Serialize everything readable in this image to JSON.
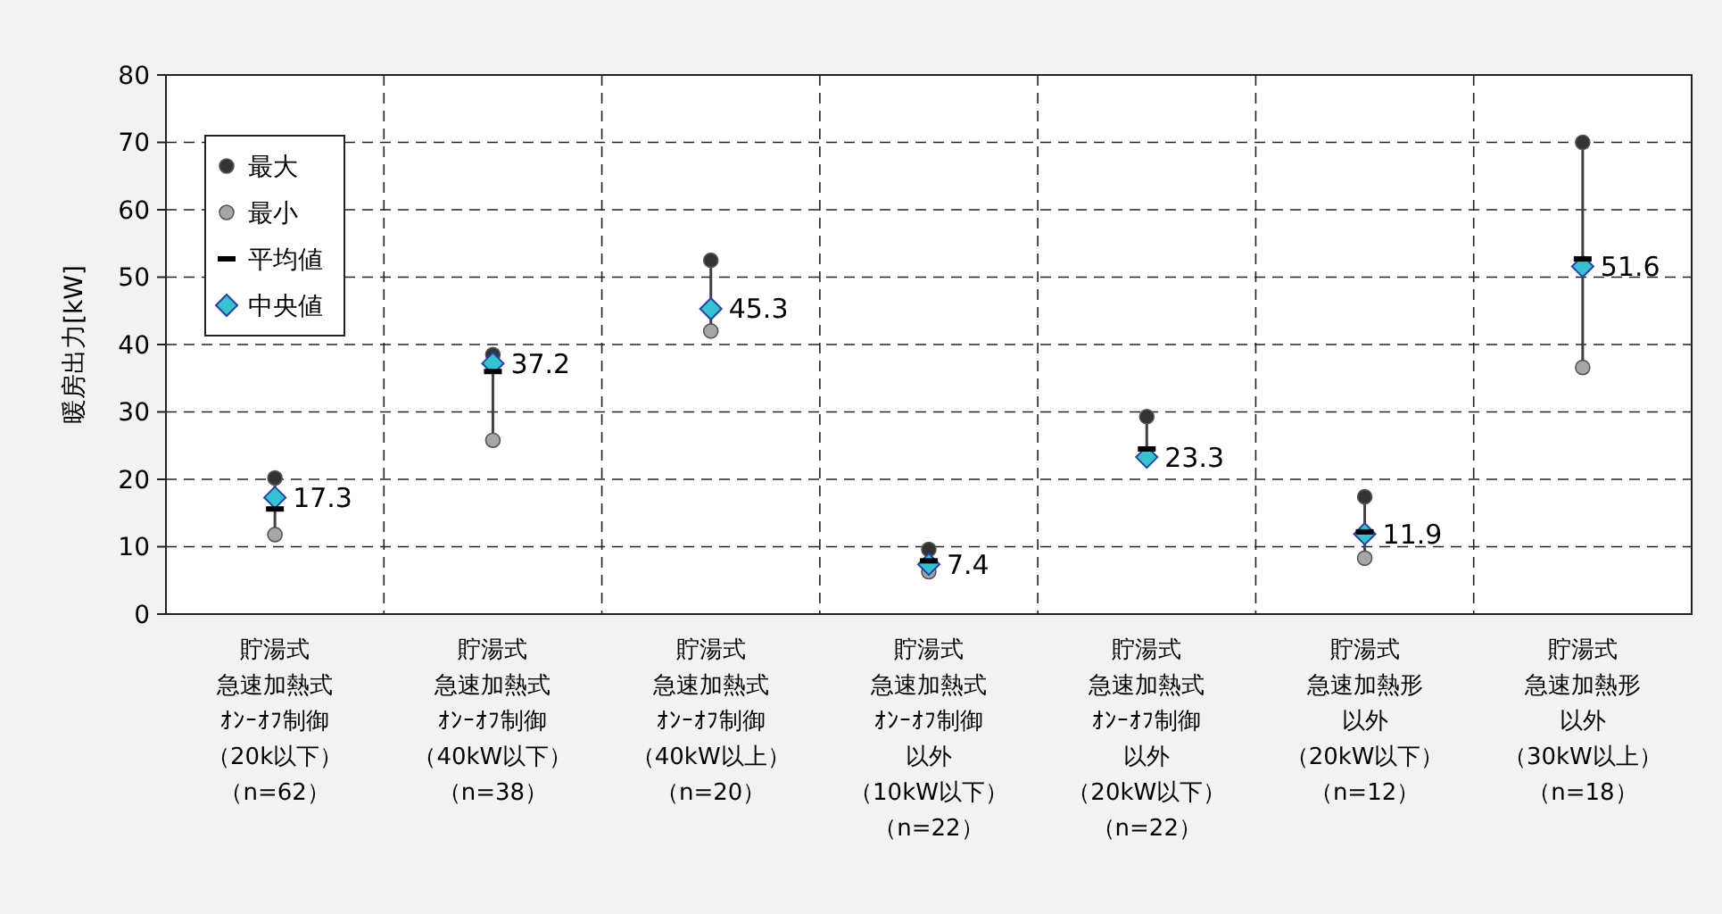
{
  "chart_data": {
    "type": "scatter",
    "ylabel": "暖房出力[kW]",
    "categories": [
      "貯湯式急速加熱式ｵﾝｰｵﾌ制御（20k以下）（n=62）",
      "貯湯式急速加熱式ｵﾝｰｵﾌ制御（40kW以下）（n=38）",
      "貯湯式急速加熱式ｵﾝｰｵﾌ制御（40kW以上）（n=20）",
      "貯湯式急速加熱式ｵﾝｰｵﾌ制御以外（10kW以下）（n=22）",
      "貯湯式急速加熱式ｵﾝｰｵﾌ制御以外（20kW以下）（n=22）",
      "貯湯式急速加熱形以外（20kW以下）（n=12）",
      "貯湯式急速加熱形以外（30kW以上）（n=18）"
    ],
    "series": [
      {
        "name": "最大",
        "color": "#333333",
        "marker": "circle",
        "values": [
          20.2,
          38.5,
          52.5,
          9.6,
          29.3,
          17.4,
          70
        ]
      },
      {
        "name": "最小",
        "color": "#a6a6a6",
        "marker": "circle",
        "values": [
          11.8,
          25.8,
          42,
          6.3,
          null,
          8.3,
          36.6
        ]
      },
      {
        "name": "平均値",
        "color": "#000000",
        "marker": "square",
        "values": [
          15.6,
          36,
          null,
          7.9,
          24.5,
          12.2,
          52.7
        ]
      },
      {
        "name": "中央値",
        "color": "#33c3d1",
        "marker": "diamond",
        "values": [
          17.3,
          37.2,
          45.3,
          7.4,
          23.3,
          11.9,
          51.6
        ],
        "value_labels": [
          "17.3",
          "37.2",
          "45.3",
          "7.4",
          "23.3",
          "11.9",
          "51.6"
        ]
      }
    ],
    "ylim": [
      0,
      80
    ],
    "yticks": [
      0,
      10,
      20,
      30,
      40,
      50,
      60,
      70,
      80
    ],
    "grid": true,
    "legend": "top left"
  }
}
